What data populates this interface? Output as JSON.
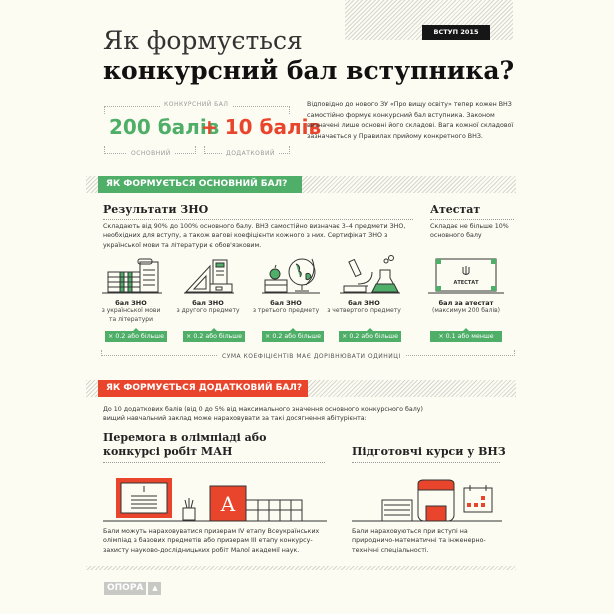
{
  "header": {
    "badge": "ВСТУП 2015",
    "title_line1": "Як формується",
    "title_line2": "конкурсний бал вступника?"
  },
  "score": {
    "caption": "КОНКУРСНИЙ БАЛ",
    "main_value": "200 балів",
    "extra_value": "+ 10 балів",
    "main_label": "ОСНОВНИЙ",
    "extra_label": "ДОДАТКОВИЙ",
    "main_color": "#4fae68",
    "extra_color": "#e8452c"
  },
  "intro": "Відповідно до нового ЗУ «Про вищу освіту» тепер кожен ВНЗ самостійно формує конкурсний бал вступника. Законом визначені лише основні його складові. Вага кожної складової зазначається у Правилах прийому конкретного ВНЗ.",
  "main_section": {
    "title": "ЯК ФОРМУЄТЬСЯ ОСНОВНИЙ БАЛ?",
    "zno_heading": "Результати ЗНО",
    "zno_text": "Складають від 90% до 100% основного балу. ВНЗ самостійно визначає 3–4 предмети ЗНО, необхідних для вступу, а також вагові коефіцієнти кожного з них.  Сертифікат ЗНО з української мови та літератури є обов'язковим.",
    "atestat_heading": "Атестат",
    "atestat_text": "Складає не більше 10% основного балу",
    "items": [
      {
        "icon": "books-scroll-icon",
        "title": "бал ЗНО",
        "sub": "з української мови та літератури",
        "coef": "× 0.2 або більше"
      },
      {
        "icon": "ruler-books-icon",
        "title": "бал ЗНО",
        "sub": "з другого предмету",
        "coef": "× 0.2 або більше"
      },
      {
        "icon": "apple-globe-icon",
        "title": "бал ЗНО",
        "sub": "з третього предмету",
        "coef": "× 0.2 або більше"
      },
      {
        "icon": "microscope-flask-icon",
        "title": "бал ЗНО",
        "sub": "з четвертого предмету",
        "coef": "× 0.2 або більше"
      },
      {
        "icon": "certificate-icon",
        "icon_text": "АТЕСТАТ",
        "title": "бал за атестат",
        "sub": "(максимум 200 балів)",
        "coef": "× 0.1 або менше"
      }
    ],
    "sum_note": "СУМА КОЕФІЦІЄНТІВ МАЄ ДОРІВНЮВАТИ ОДИНИЦІ"
  },
  "extra_section": {
    "title": "ЯК ФОРМУЄТЬСЯ ДОДАТКОВИЙ БАЛ?",
    "intro": "До 10 додаткових балів (від 0 до 5% від максимального значення основного конкурсного балу) вищий навчальний заклад може нараховувати за такі досягнення абітурієнта:",
    "olymp_heading": "Перемога в олімпіаді або конкурсі робіт МАН",
    "olymp_text": "Бали можуть нараховуватися призерам IV етапу Всеукраїнських олімпіад з базових предметів або призерам III етапу конкурсу-захисту науково-дослідницьких робіт Малої академії наук.",
    "courses_heading": "Підготовчі курси у ВНЗ",
    "courses_text": "Бали нараховуються при вступі на природничо-математичні та інженерно-технічні спеціальності."
  },
  "footer": {
    "logo": "ОПОРА"
  }
}
